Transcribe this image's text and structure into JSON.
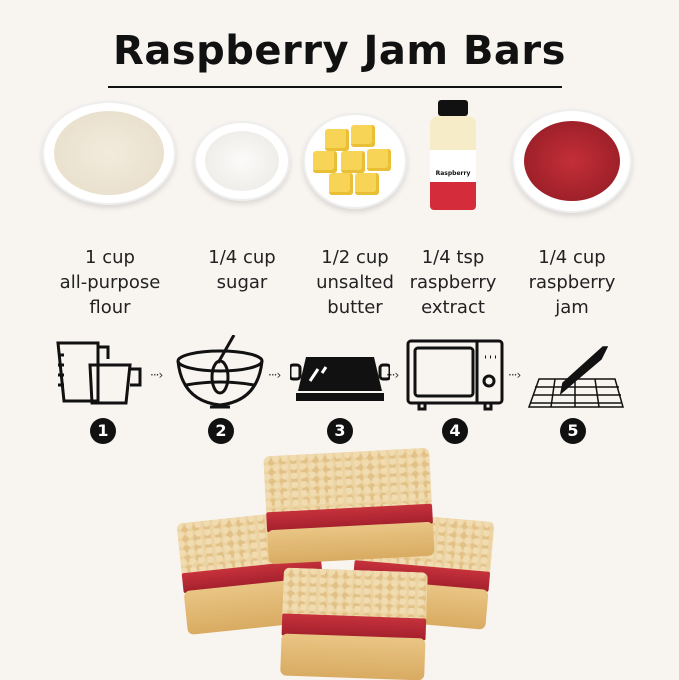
{
  "title": "Raspberry Jam Bars",
  "ingredients": [
    {
      "lines": [
        "1 cup",
        "all-purpose",
        "flour"
      ]
    },
    {
      "lines": [
        "1/4 cup",
        "sugar"
      ]
    },
    {
      "lines": [
        "1/2 cup",
        "unsalted",
        "butter"
      ]
    },
    {
      "lines": [
        "1/4 tsp",
        "raspberry",
        "extract"
      ]
    },
    {
      "lines": [
        "1/4 cup",
        "raspberry",
        "jam"
      ]
    }
  ],
  "bottle_label": "Raspberry",
  "steps": [
    {
      "number": "1",
      "icon": "measuring-cups-icon"
    },
    {
      "number": "2",
      "icon": "mixing-bowl-whisk-icon"
    },
    {
      "number": "3",
      "icon": "baking-pan-icon"
    },
    {
      "number": "4",
      "icon": "oven-icon"
    },
    {
      "number": "5",
      "icon": "knife-cooling-rack-icon"
    }
  ],
  "arrow": "···›",
  "colors": {
    "background": "#f8f4f0",
    "jam": "#b02632",
    "crumb": "#ecd3a2",
    "butter": "#f7d455"
  }
}
